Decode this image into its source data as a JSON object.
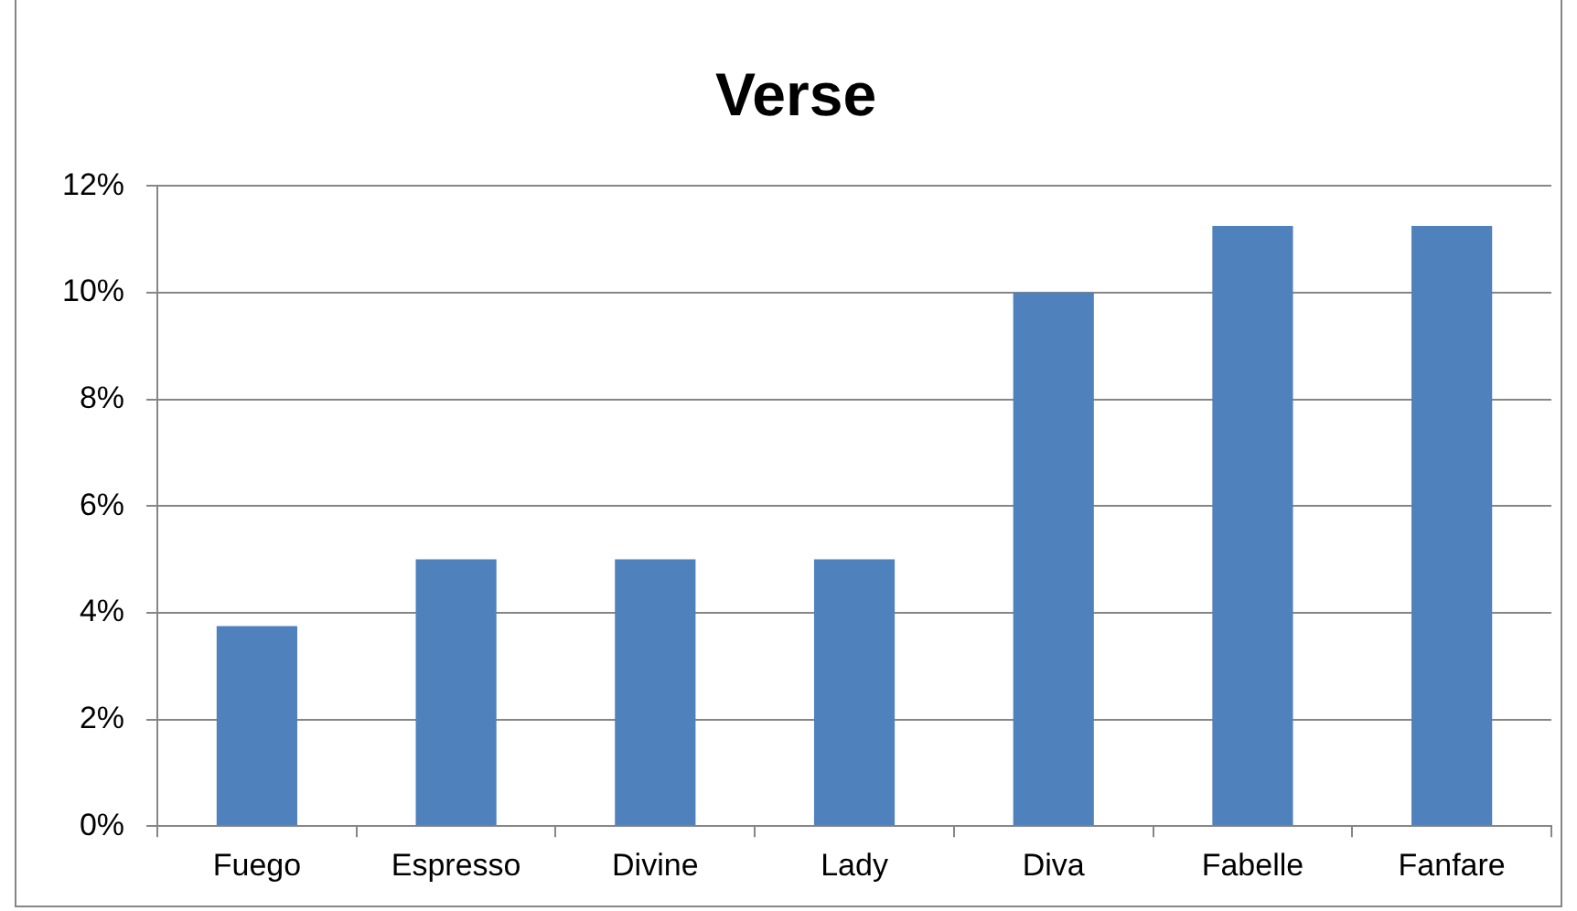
{
  "chart_data": {
    "type": "bar",
    "title": "Verse",
    "categories": [
      "Fuego",
      "Espresso",
      "Divine",
      "Lady",
      "Diva",
      "Fabelle",
      "Fanfare"
    ],
    "values": [
      3.75,
      5,
      5,
      5,
      10,
      11.25,
      11.25
    ],
    "color": "#4f81bd",
    "ylim": [
      0,
      12
    ],
    "yticks": [
      {
        "value": 0,
        "label": "0%"
      },
      {
        "value": 2,
        "label": "2%"
      },
      {
        "value": 4,
        "label": "4%"
      },
      {
        "value": 6,
        "label": "6%"
      },
      {
        "value": 8,
        "label": "8%"
      },
      {
        "value": 10,
        "label": "10%"
      },
      {
        "value": 12,
        "label": "12%"
      }
    ],
    "grid": true
  }
}
